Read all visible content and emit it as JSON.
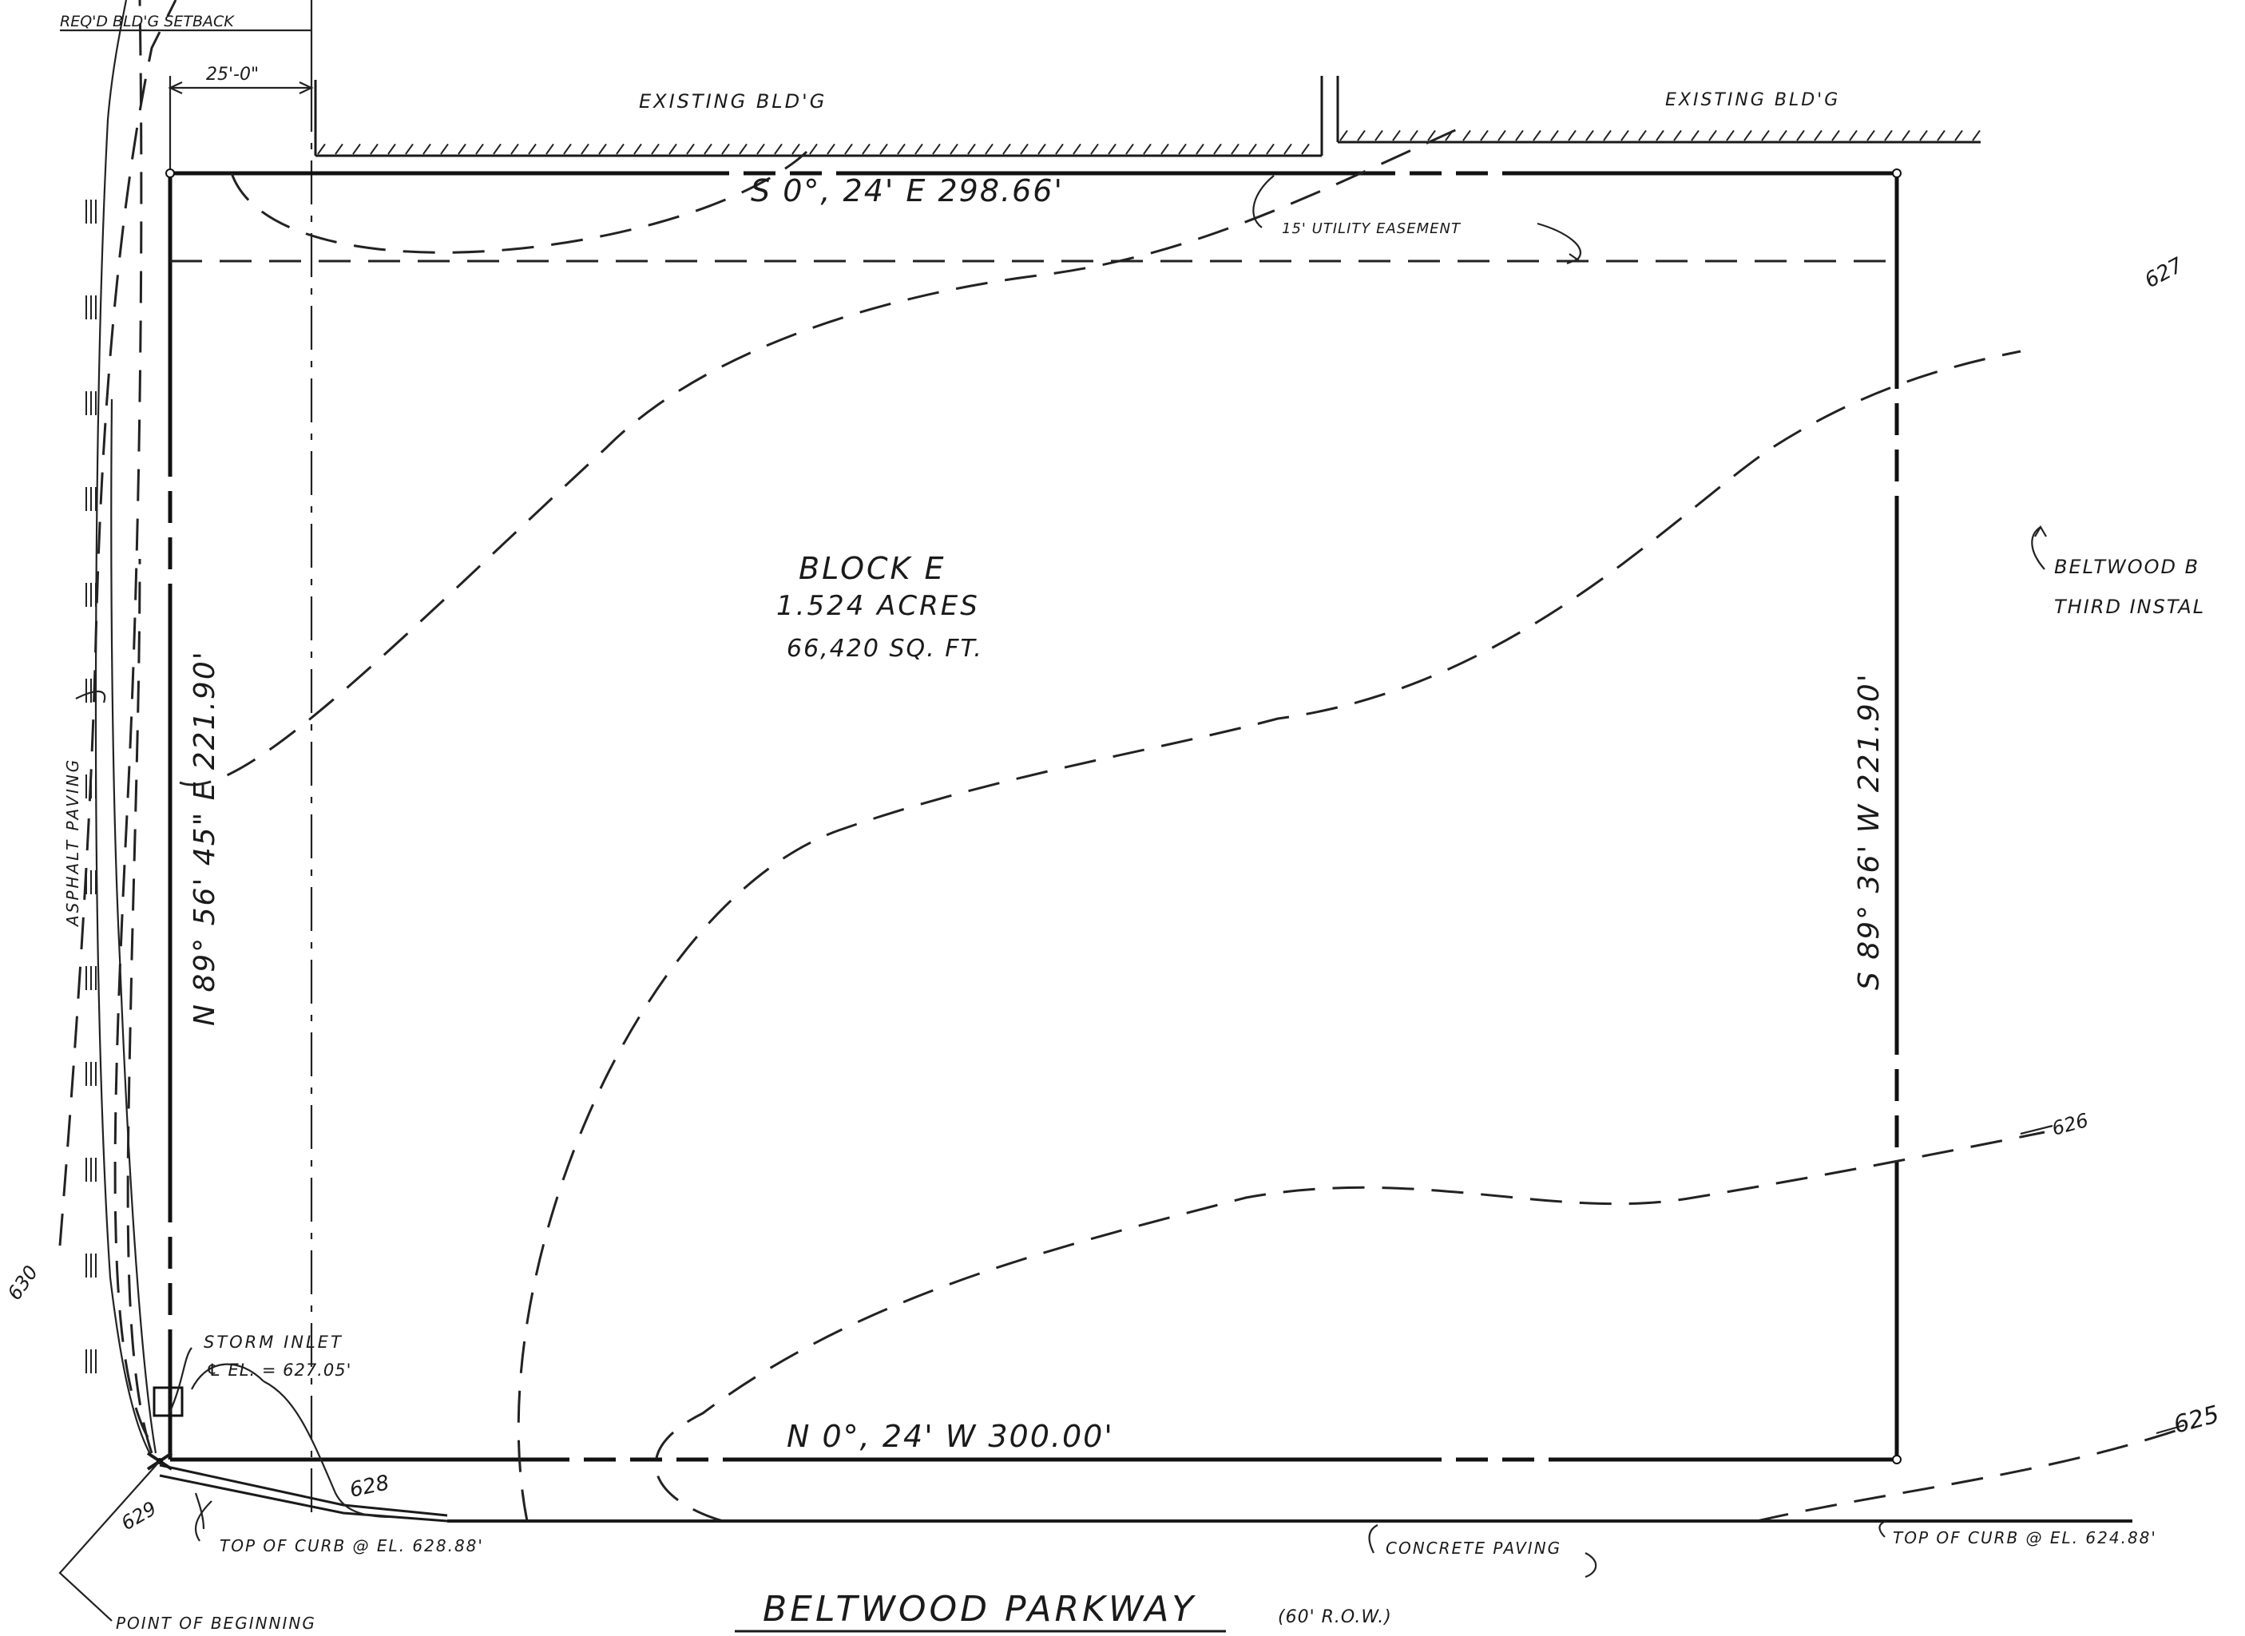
{
  "labels": {
    "setback_top": "REQ'D BLD'G SETBACK",
    "setback_dim": "25'-0\"",
    "existing_bldg_left": "EXISTING BLD'G",
    "existing_bldg_right": "EXISTING BLD'G",
    "bearing_top": "S 0°, 24' E   298.66'",
    "utility_easement": "15' UTILITY EASEMENT",
    "contour_627": "627",
    "beltwood_line1": "BELTWOOD B",
    "beltwood_line2": "THIRD INSTAL",
    "block_name": "BLOCK   E",
    "block_acres": "1.524 ACRES",
    "block_sqft": "66,420 SQ. FT.",
    "bearing_right": "S 89° 36' W   221.90'",
    "bearing_left": "N 89° 56' 45\" E   221.90'",
    "asphalt_paving": "ASPHALT PAVING",
    "contour_626": "626",
    "contour_625": "625",
    "contour_630": "630",
    "storm_inlet_1": "STORM INLET",
    "storm_inlet_2": "℄ EL. = 627.05'",
    "contour_628": "628",
    "contour_629": "629",
    "bearing_bottom": "N 0°, 24' W   300.00'",
    "top_of_curb_left": "TOP OF CURB @ EL. 628.88'",
    "concrete_paving": "CONCRETE   PAVING",
    "top_of_curb_right": "TOP OF CURB @ EL. 624.88'",
    "point_of_beginning": "POINT OF BEGINNING",
    "street_name": "BELTWOOD PARKWAY",
    "street_row": "(60' R.O.W.)"
  },
  "colors": {
    "ink": "#1a1a1a",
    "paper": "#ffffff"
  }
}
